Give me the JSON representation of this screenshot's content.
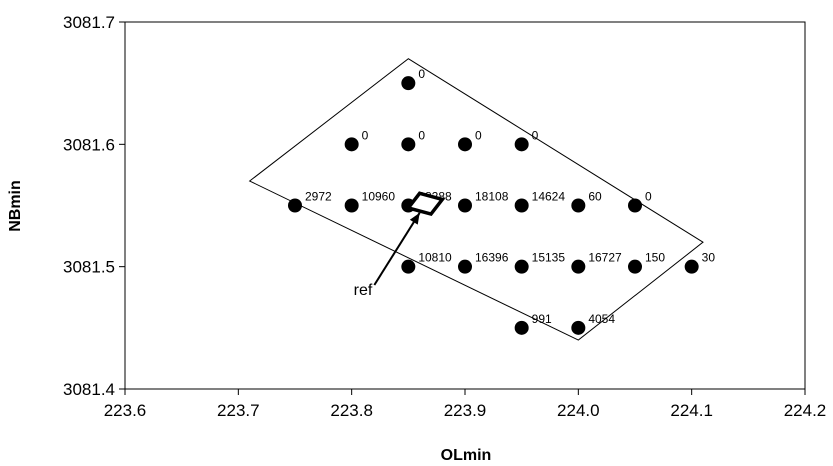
{
  "chart_data": {
    "type": "scatter",
    "title": "",
    "xlabel": "OLmin",
    "ylabel": "NBmin",
    "xlim": [
      223.6,
      224.2
    ],
    "ylim": [
      3081.4,
      3081.7
    ],
    "x_ticks": [
      "223.6",
      "223.7",
      "223.8",
      "223.9",
      "224.0",
      "224.1",
      "224.2"
    ],
    "y_ticks": [
      "3081.4",
      "3081.5",
      "3081.6",
      "3081.7"
    ],
    "grid": false,
    "legend": "none",
    "marker_color": "#000000",
    "points": [
      {
        "x": 223.85,
        "y": 3081.65,
        "label": "0"
      },
      {
        "x": 223.8,
        "y": 3081.6,
        "label": "0"
      },
      {
        "x": 223.85,
        "y": 3081.6,
        "label": "0"
      },
      {
        "x": 223.9,
        "y": 3081.6,
        "label": "0"
      },
      {
        "x": 223.95,
        "y": 3081.6,
        "label": "0"
      },
      {
        "x": 223.75,
        "y": 3081.55,
        "label": "2972"
      },
      {
        "x": 223.8,
        "y": 3081.55,
        "label": "10960"
      },
      {
        "x": 223.85,
        "y": 3081.55,
        "label": "18288"
      },
      {
        "x": 223.9,
        "y": 3081.55,
        "label": "18108"
      },
      {
        "x": 223.95,
        "y": 3081.55,
        "label": "14624"
      },
      {
        "x": 224.0,
        "y": 3081.55,
        "label": "60"
      },
      {
        "x": 224.05,
        "y": 3081.55,
        "label": "0"
      },
      {
        "x": 223.85,
        "y": 3081.5,
        "label": "10810"
      },
      {
        "x": 223.9,
        "y": 3081.5,
        "label": "16396"
      },
      {
        "x": 223.95,
        "y": 3081.5,
        "label": "15135"
      },
      {
        "x": 224.0,
        "y": 3081.5,
        "label": "16727"
      },
      {
        "x": 224.05,
        "y": 3081.5,
        "label": "150"
      },
      {
        "x": 224.1,
        "y": 3081.5,
        "label": "30"
      },
      {
        "x": 223.95,
        "y": 3081.45,
        "label": "991"
      },
      {
        "x": 224.0,
        "y": 3081.45,
        "label": "4054"
      }
    ],
    "polygon": [
      {
        "x": 223.85,
        "y": 3081.67
      },
      {
        "x": 224.11,
        "y": 3081.52
      },
      {
        "x": 224.0,
        "y": 3081.44
      },
      {
        "x": 223.71,
        "y": 3081.57
      }
    ],
    "ref_marker": {
      "label": "ref",
      "square": [
        {
          "x": 223.86,
          "y": 3081.56
        },
        {
          "x": 223.88,
          "y": 3081.555
        },
        {
          "x": 223.87,
          "y": 3081.543
        },
        {
          "x": 223.85,
          "y": 3081.548
        }
      ],
      "arrow_from": {
        "x": 223.82,
        "y": 3081.485
      },
      "arrow_to": {
        "x": 223.86,
        "y": 3081.544
      }
    }
  }
}
